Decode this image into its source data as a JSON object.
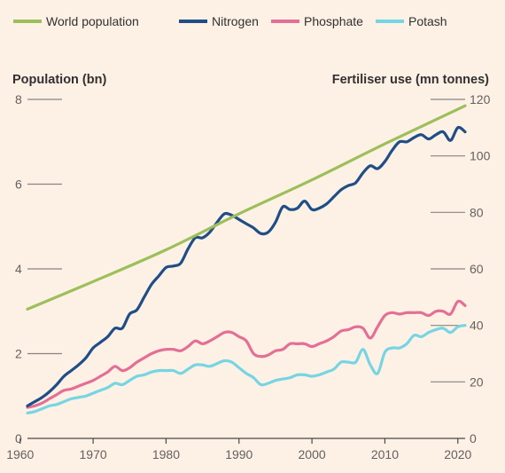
{
  "chart_data": {
    "type": "line",
    "legend": [
      {
        "name": "World population",
        "color": "#9dbf5a"
      },
      {
        "name": "Nitrogen",
        "color": "#1f4e86"
      },
      {
        "name": "Phosphate",
        "color": "#e46f95"
      },
      {
        "name": "Potash",
        "color": "#76d5e2"
      }
    ],
    "legend_position": "top-left",
    "left_axis": {
      "title": "Population (bn)",
      "ticks": [
        "0",
        "2",
        "4",
        "6",
        "8"
      ],
      "range": [
        0,
        8
      ]
    },
    "right_axis": {
      "title": "Fertiliser use (mn tonnes)",
      "ticks": [
        "0",
        "20",
        "40",
        "60",
        "80",
        "100",
        "120"
      ],
      "range": [
        0,
        120
      ]
    },
    "x_axis": {
      "ticks": [
        "1960",
        "1970",
        "1980",
        "1990",
        "2000",
        "2010",
        "2020"
      ],
      "range": [
        1961,
        2021
      ]
    },
    "grid": true,
    "series": [
      {
        "name": "World population",
        "axis": "left",
        "color": "#9dbf5a",
        "x": [
          1961,
          1970,
          1980,
          1990,
          2000,
          2010,
          2021
        ],
        "y": [
          3.05,
          3.7,
          4.45,
          5.3,
          6.1,
          6.95,
          7.85
        ]
      },
      {
        "name": "Nitrogen",
        "axis": "right",
        "color": "#1f4e86",
        "x": [
          1961,
          1962,
          1963,
          1964,
          1965,
          1966,
          1967,
          1968,
          1969,
          1970,
          1971,
          1972,
          1973,
          1974,
          1975,
          1976,
          1977,
          1978,
          1979,
          1980,
          1981,
          1982,
          1983,
          1984,
          1985,
          1986,
          1987,
          1988,
          1989,
          1990,
          1991,
          1992,
          1993,
          1994,
          1995,
          1996,
          1997,
          1998,
          1999,
          2000,
          2001,
          2002,
          2003,
          2004,
          2005,
          2006,
          2007,
          2008,
          2009,
          2010,
          2011,
          2012,
          2013,
          2014,
          2015,
          2016,
          2017,
          2018,
          2019,
          2020,
          2021
        ],
        "y": [
          11.5,
          13,
          14.5,
          16.5,
          19,
          22,
          24,
          26,
          28.5,
          32,
          34,
          36,
          39,
          39,
          44,
          45.5,
          50,
          54.5,
          57.5,
          60.5,
          61,
          62,
          67,
          71,
          71,
          73,
          76.5,
          79.5,
          79,
          77.5,
          76,
          74.5,
          72.5,
          73,
          76.5,
          82,
          81,
          81.5,
          84,
          81,
          81.5,
          83,
          85.5,
          88,
          89.5,
          90.5,
          94,
          96.5,
          95.5,
          98,
          102,
          105,
          105,
          106.5,
          107.5,
          106,
          107.5,
          108.5,
          105.5,
          110,
          108.5
        ]
      },
      {
        "name": "Phosphate",
        "axis": "right",
        "color": "#e46f95",
        "x": [
          1961,
          1962,
          1963,
          1964,
          1965,
          1966,
          1967,
          1968,
          1969,
          1970,
          1971,
          1972,
          1973,
          1974,
          1975,
          1976,
          1977,
          1978,
          1979,
          1980,
          1981,
          1982,
          1983,
          1984,
          1985,
          1986,
          1987,
          1988,
          1989,
          1990,
          1991,
          1992,
          1993,
          1994,
          1995,
          1996,
          1997,
          1998,
          1999,
          2000,
          2001,
          2002,
          2003,
          2004,
          2005,
          2006,
          2007,
          2008,
          2009,
          2010,
          2011,
          2012,
          2013,
          2014,
          2015,
          2016,
          2017,
          2018,
          2019,
          2020,
          2021
        ],
        "y": [
          11,
          11.5,
          12.5,
          14,
          15.5,
          17,
          17.5,
          18.5,
          19.5,
          20.5,
          22,
          23.5,
          25.5,
          24,
          25,
          27,
          28.5,
          30,
          31,
          31.5,
          31.5,
          31,
          32.5,
          34.5,
          33.5,
          34.5,
          36,
          37.5,
          37.5,
          36,
          34.5,
          30,
          29,
          29.5,
          31,
          31.5,
          33.5,
          33.5,
          33.5,
          32.5,
          33.5,
          34.5,
          36,
          38,
          38.5,
          39.5,
          39,
          35.5,
          39.5,
          43.5,
          44.5,
          44,
          44.5,
          44.5,
          44.5,
          43.5,
          45,
          45,
          44,
          48.5,
          47
        ]
      },
      {
        "name": "Potash",
        "axis": "right",
        "color": "#76d5e2",
        "x": [
          1961,
          1962,
          1963,
          1964,
          1965,
          1966,
          1967,
          1968,
          1969,
          1970,
          1971,
          1972,
          1973,
          1974,
          1975,
          1976,
          1977,
          1978,
          1979,
          1980,
          1981,
          1982,
          1983,
          1984,
          1985,
          1986,
          1987,
          1988,
          1989,
          1990,
          1991,
          1992,
          1993,
          1994,
          1995,
          1996,
          1997,
          1998,
          1999,
          2000,
          2001,
          2002,
          2003,
          2004,
          2005,
          2006,
          2007,
          2008,
          2009,
          2010,
          2011,
          2012,
          2013,
          2014,
          2015,
          2016,
          2017,
          2018,
          2019,
          2020,
          2021
        ],
        "y": [
          9,
          9.5,
          10.5,
          11.5,
          12,
          13,
          14,
          14.5,
          15,
          16,
          17,
          18,
          19.5,
          19,
          20.5,
          22,
          22.5,
          23.5,
          24,
          24,
          24,
          23,
          24.5,
          26,
          26,
          25.5,
          26.5,
          27.5,
          27,
          25,
          23,
          21.5,
          19,
          19.5,
          20.5,
          21,
          21.5,
          22.5,
          22.5,
          22,
          22.5,
          23.5,
          24.5,
          27,
          27,
          27,
          31.5,
          26,
          23,
          30.5,
          32,
          32,
          33.5,
          36.5,
          36,
          37.5,
          38.5,
          39,
          37.5,
          39.5,
          40
        ]
      }
    ]
  }
}
